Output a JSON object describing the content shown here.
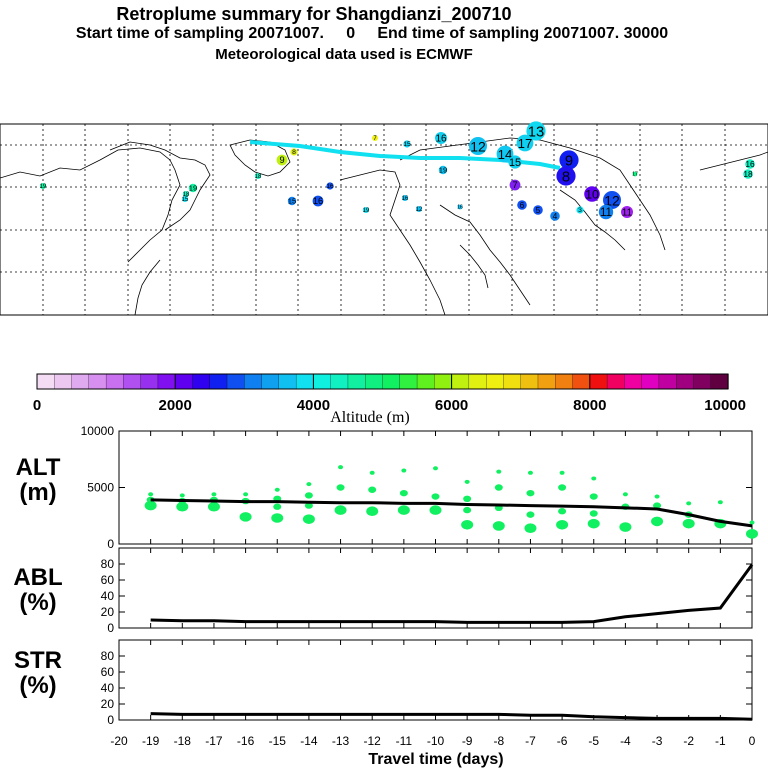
{
  "header": {
    "title": "Retroplume summary for Shangdianzi_200710",
    "sampling": "Start time of sampling 20071007.     0     End time of sampling 20071007. 30000",
    "met": "Meteorological data used is ECMWF"
  },
  "colorbar": {
    "label": "Altitude (m)",
    "ticks": [
      "0",
      "2000",
      "4000",
      "6000",
      "8000",
      "10000"
    ],
    "colors": [
      "#f4dcf4",
      "#ecc8f0",
      "#e0aaf0",
      "#d890f0",
      "#c870f0",
      "#b050f0",
      "#9830f0",
      "#8010f0",
      "#6000f0",
      "#3000f0",
      "#1020f0",
      "#1050f0",
      "#1080f0",
      "#10a0f0",
      "#10c0f0",
      "#10e0f0",
      "#10f0e0",
      "#10f0c0",
      "#10f0a0",
      "#10f080",
      "#10f060",
      "#30f040",
      "#60f020",
      "#90f010",
      "#c0f010",
      "#e0f010",
      "#f0f010",
      "#f0e010",
      "#f0c010",
      "#f0a010",
      "#f08010",
      "#f05010",
      "#f01010",
      "#f00060",
      "#f000a0",
      "#e000c0",
      "#c000a0",
      "#a00080",
      "#800060",
      "#600040"
    ]
  },
  "map": {
    "labels": [
      {
        "t": "13",
        "x": 536,
        "y": 131,
        "c": "#10d8f0",
        "s": 1.6
      },
      {
        "t": "12",
        "x": 478,
        "y": 146,
        "c": "#10c0f0",
        "s": 1.5
      },
      {
        "t": "14",
        "x": 505,
        "y": 154,
        "c": "#10c8f0",
        "s": 1.4
      },
      {
        "t": "17",
        "x": 525,
        "y": 143,
        "c": "#10d0f0",
        "s": 1.4
      },
      {
        "t": "15",
        "x": 515,
        "y": 162,
        "c": "#10d0f0",
        "s": 1.1
      },
      {
        "t": "16",
        "x": 441,
        "y": 138,
        "c": "#10d0f0",
        "s": 1.0
      },
      {
        "t": "15",
        "x": 407,
        "y": 144,
        "c": "#10d0f0",
        "s": 0.6
      },
      {
        "t": "7",
        "x": 375,
        "y": 138,
        "c": "#f0f010",
        "s": 0.5
      },
      {
        "t": "9",
        "x": 569,
        "y": 160,
        "c": "#1020f0",
        "s": 1.6
      },
      {
        "t": "8",
        "x": 566,
        "y": 176,
        "c": "#2010f0",
        "s": 1.6
      },
      {
        "t": "7",
        "x": 515,
        "y": 185,
        "c": "#8020f0",
        "s": 0.9
      },
      {
        "t": "10",
        "x": 592,
        "y": 194,
        "c": "#6000f0",
        "s": 1.3
      },
      {
        "t": "12",
        "x": 612,
        "y": 200,
        "c": "#1050f0",
        "s": 1.5
      },
      {
        "t": "11",
        "x": 606,
        "y": 212,
        "c": "#1080f0",
        "s": 1.2
      },
      {
        "t": "11",
        "x": 627,
        "y": 212,
        "c": "#a020f0",
        "s": 1.0
      },
      {
        "t": "6",
        "x": 522,
        "y": 205,
        "c": "#1050f0",
        "s": 0.8
      },
      {
        "t": "5",
        "x": 538,
        "y": 210,
        "c": "#1050f0",
        "s": 0.8
      },
      {
        "t": "4",
        "x": 555,
        "y": 216,
        "c": "#1080f0",
        "s": 0.8
      },
      {
        "t": "3",
        "x": 580,
        "y": 210,
        "c": "#10e0f0",
        "s": 0.6
      },
      {
        "t": "19",
        "x": 443,
        "y": 170,
        "c": "#10c0f0",
        "s": 0.7
      },
      {
        "t": "19",
        "x": 193,
        "y": 188,
        "c": "#10f0a0",
        "s": 0.7
      },
      {
        "t": "18",
        "x": 186,
        "y": 194,
        "c": "#10f0c0",
        "s": 0.5
      },
      {
        "t": "15",
        "x": 185,
        "y": 199,
        "c": "#10e0f0",
        "s": 0.5
      },
      {
        "t": "18",
        "x": 258,
        "y": 176,
        "c": "#10f0c0",
        "s": 0.5
      },
      {
        "t": "9",
        "x": 282,
        "y": 160,
        "c": "#c0f010",
        "s": 0.9
      },
      {
        "t": "8",
        "x": 294,
        "y": 152,
        "c": "#e0f010",
        "s": 0.6
      },
      {
        "t": "15",
        "x": 292,
        "y": 201,
        "c": "#1080f0",
        "s": 0.7
      },
      {
        "t": "16",
        "x": 318,
        "y": 201,
        "c": "#1050f0",
        "s": 0.9
      },
      {
        "t": "16",
        "x": 330,
        "y": 186,
        "c": "#1050f0",
        "s": 0.6
      },
      {
        "t": "19",
        "x": 43,
        "y": 186,
        "c": "#10f0a0",
        "s": 0.5
      },
      {
        "t": "17",
        "x": 635,
        "y": 174,
        "c": "#10f080",
        "s": 0.4
      },
      {
        "t": "16",
        "x": 750,
        "y": 164,
        "c": "#10f0c0",
        "s": 0.8
      },
      {
        "t": "18",
        "x": 748,
        "y": 174,
        "c": "#10f0c0",
        "s": 0.8
      },
      {
        "t": "19",
        "x": 366,
        "y": 210,
        "c": "#10e0f0",
        "s": 0.5
      },
      {
        "t": "16",
        "x": 405,
        "y": 198,
        "c": "#10c0f0",
        "s": 0.5
      },
      {
        "t": "12",
        "x": 419,
        "y": 209,
        "c": "#10c0f0",
        "s": 0.5
      },
      {
        "t": "16",
        "x": 460,
        "y": 207,
        "c": "#10c0f0",
        "s": 0.4
      }
    ]
  },
  "panels": {
    "alt": {
      "name1": "ALT",
      "name2": "(m)",
      "yticks": [
        "10000",
        "5000",
        "0"
      ]
    },
    "abl": {
      "name1": "ABL",
      "name2": "(%)",
      "yticks": [
        "80",
        "60",
        "40",
        "20",
        "0"
      ]
    },
    "str": {
      "name1": "STR",
      "name2": "(%)",
      "yticks": [
        "80",
        "60",
        "40",
        "20",
        "0"
      ]
    }
  },
  "xaxis": {
    "label": "Travel time (days)",
    "ticks": [
      "-20",
      "-19",
      "-18",
      "-17",
      "-16",
      "-15",
      "-14",
      "-13",
      "-12",
      "-11",
      "-10",
      "-9",
      "-8",
      "-7",
      "-6",
      "-5",
      "-4",
      "-3",
      "-2",
      "-1",
      "0"
    ]
  },
  "chart_data": [
    {
      "type": "scatter",
      "title": "ALT",
      "ylabel": "(m)",
      "xlabel": "Travel time (days)",
      "xlim": [
        -20,
        0
      ],
      "ylim": [
        0,
        10000
      ],
      "median_line": {
        "x": [
          -19,
          -18,
          -17,
          -16,
          -15,
          -14,
          -13,
          -12,
          -11,
          -10,
          -9,
          -8,
          -7,
          -6,
          -5,
          -4,
          -3,
          -2,
          -1,
          0
        ],
        "y": [
          3900,
          3850,
          3800,
          3750,
          3750,
          3700,
          3650,
          3650,
          3600,
          3600,
          3500,
          3450,
          3400,
          3350,
          3300,
          3200,
          3100,
          2600,
          2000,
          1600
        ]
      },
      "clusters": [
        {
          "x": -19,
          "y": [
            4400,
            3900,
            3400
          ]
        },
        {
          "x": -18,
          "y": [
            4300,
            3800,
            3300
          ]
        },
        {
          "x": -17,
          "y": [
            4400,
            3900,
            3300
          ]
        },
        {
          "x": -16,
          "y": [
            4400,
            3800,
            2400
          ]
        },
        {
          "x": -15,
          "y": [
            4800,
            4000,
            3300,
            2300
          ]
        },
        {
          "x": -14,
          "y": [
            5300,
            4300,
            3400,
            2200
          ]
        },
        {
          "x": -13,
          "y": [
            6800,
            5000,
            3000
          ]
        },
        {
          "x": -12,
          "y": [
            6300,
            4800,
            2900
          ]
        },
        {
          "x": -11,
          "y": [
            6500,
            4500,
            3000
          ]
        },
        {
          "x": -10,
          "y": [
            6700,
            4200,
            3000
          ]
        },
        {
          "x": -9,
          "y": [
            5500,
            4000,
            3000,
            1700
          ]
        },
        {
          "x": -8,
          "y": [
            6400,
            5000,
            3200,
            1600
          ]
        },
        {
          "x": -7,
          "y": [
            6300,
            4500,
            2600,
            1400
          ]
        },
        {
          "x": -6,
          "y": [
            6300,
            5000,
            2900,
            1700
          ]
        },
        {
          "x": -5,
          "y": [
            5800,
            4200,
            2700,
            1800
          ]
        },
        {
          "x": -4,
          "y": [
            4400,
            3300,
            1500
          ]
        },
        {
          "x": -3,
          "y": [
            4200,
            3400,
            2000
          ]
        },
        {
          "x": -2,
          "y": [
            3600,
            2600,
            1800
          ]
        },
        {
          "x": -1,
          "y": [
            3700,
            1800
          ]
        },
        {
          "x": 0,
          "y": [
            1900,
            900
          ]
        }
      ]
    },
    {
      "type": "line",
      "title": "ABL",
      "ylabel": "(%)",
      "xlim": [
        -20,
        0
      ],
      "ylim": [
        0,
        100
      ],
      "x": [
        -19,
        -18,
        -17,
        -16,
        -15,
        -14,
        -13,
        -12,
        -11,
        -10,
        -9,
        -8,
        -7,
        -6,
        -5,
        -4,
        -3,
        -2,
        -1,
        0
      ],
      "y": [
        10,
        9,
        9,
        8,
        8,
        8,
        8,
        8,
        8,
        8,
        7,
        7,
        7,
        7,
        8,
        14,
        18,
        22,
        25,
        79
      ]
    },
    {
      "type": "line",
      "title": "STR",
      "ylabel": "(%)",
      "xlim": [
        -20,
        0
      ],
      "ylim": [
        0,
        100
      ],
      "x": [
        -19,
        -18,
        -17,
        -16,
        -15,
        -14,
        -13,
        -12,
        -11,
        -10,
        -9,
        -8,
        -7,
        -6,
        -5,
        -4,
        -3,
        -2,
        -1,
        0
      ],
      "y": [
        8,
        7,
        7,
        7,
        7,
        7,
        7,
        7,
        7,
        7,
        7,
        7,
        6,
        6,
        4,
        3,
        2,
        2,
        2,
        1
      ]
    }
  ]
}
